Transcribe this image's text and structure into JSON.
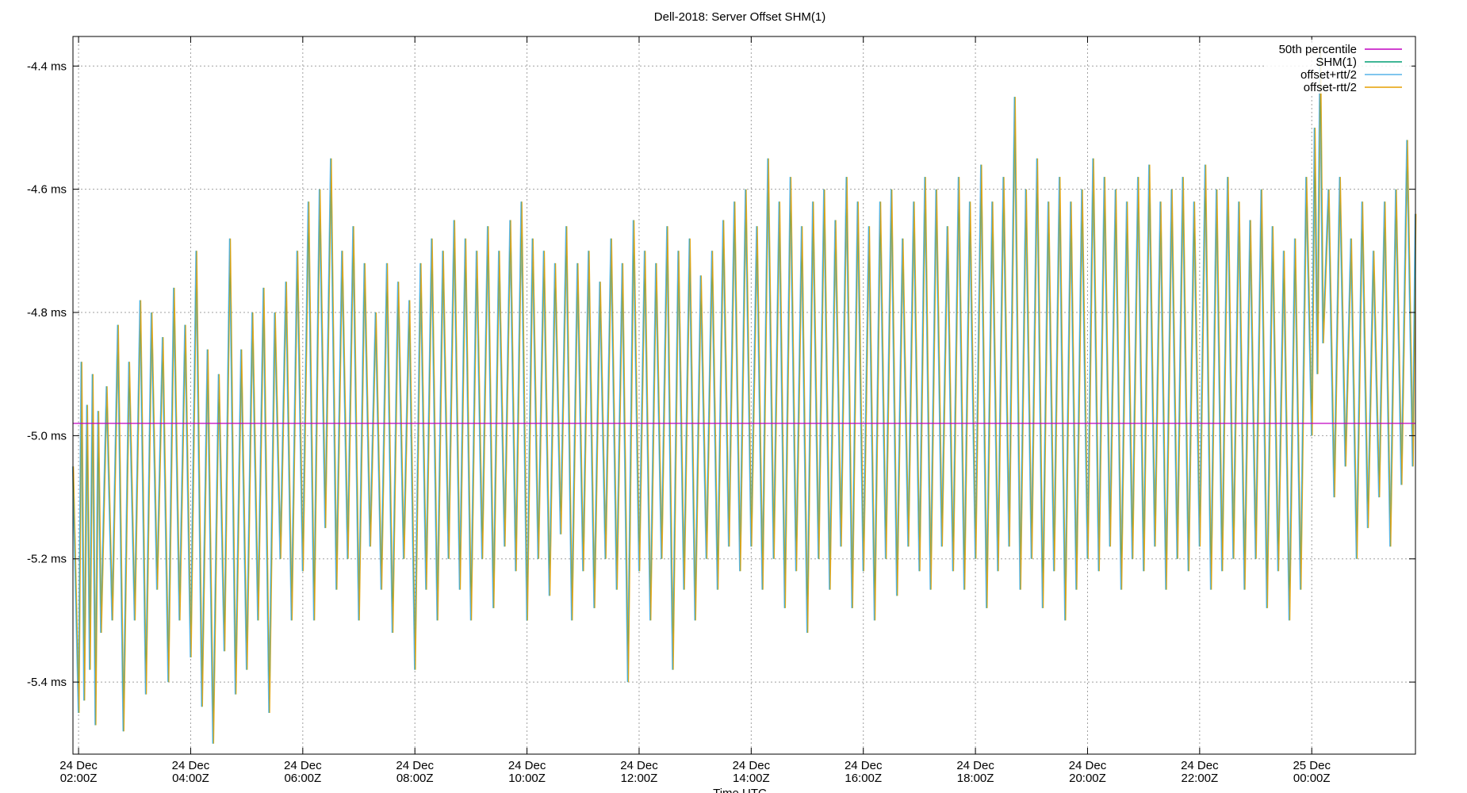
{
  "chart_data": {
    "type": "line",
    "title": "Dell-2018: Server Offset SHM(1)",
    "xlabel": "Time UTC",
    "ylabel": "",
    "x_unit": "hours since 24 Dec 02:00Z",
    "xlim": [
      -0.1,
      23.85
    ],
    "ylim": [
      -5.517,
      -4.352
    ],
    "grid": true,
    "legend_position": "top-right",
    "y_ticks": [
      {
        "value": -4.4,
        "label": "-4.4 ms"
      },
      {
        "value": -4.6,
        "label": "-4.6 ms"
      },
      {
        "value": -4.8,
        "label": "-4.8 ms"
      },
      {
        "value": -5.0,
        "label": "-5.0 ms"
      },
      {
        "value": -5.2,
        "label": "-5.2 ms"
      },
      {
        "value": -5.4,
        "label": "-5.4 ms"
      }
    ],
    "x_ticks": [
      {
        "value": 0,
        "line1": "24 Dec",
        "line2": "02:00Z"
      },
      {
        "value": 2,
        "line1": "24 Dec",
        "line2": "04:00Z"
      },
      {
        "value": 4,
        "line1": "24 Dec",
        "line2": "06:00Z"
      },
      {
        "value": 6,
        "line1": "24 Dec",
        "line2": "08:00Z"
      },
      {
        "value": 8,
        "line1": "24 Dec",
        "line2": "10:00Z"
      },
      {
        "value": 10,
        "line1": "24 Dec",
        "line2": "12:00Z"
      },
      {
        "value": 12,
        "line1": "24 Dec",
        "line2": "14:00Z"
      },
      {
        "value": 14,
        "line1": "24 Dec",
        "line2": "16:00Z"
      },
      {
        "value": 16,
        "line1": "24 Dec",
        "line2": "18:00Z"
      },
      {
        "value": 18,
        "line1": "24 Dec",
        "line2": "20:00Z"
      },
      {
        "value": 20,
        "line1": "24 Dec",
        "line2": "22:00Z"
      },
      {
        "value": 22,
        "line1": "25 Dec",
        "line2": "00:00Z"
      }
    ],
    "series": [
      {
        "name": "50th percentile",
        "color": "#c000c0",
        "kind": "constant",
        "value": -4.98
      },
      {
        "name": "SHM(1)",
        "color": "#009e73",
        "kind": "offset"
      },
      {
        "name": "offset+rtt/2",
        "color": "#56b4e9",
        "kind": "offset"
      },
      {
        "name": "offset-rtt/2",
        "color": "#e69f00",
        "kind": "offset"
      }
    ],
    "offset_samples": [
      [
        -0.1,
        -5.05
      ],
      [
        0.0,
        -5.45
      ],
      [
        0.05,
        -4.88
      ],
      [
        0.1,
        -5.43
      ],
      [
        0.15,
        -4.95
      ],
      [
        0.2,
        -5.38
      ],
      [
        0.25,
        -4.9
      ],
      [
        0.3,
        -5.47
      ],
      [
        0.35,
        -4.96
      ],
      [
        0.4,
        -5.32
      ],
      [
        0.5,
        -4.92
      ],
      [
        0.6,
        -5.3
      ],
      [
        0.7,
        -4.82
      ],
      [
        0.8,
        -5.48
      ],
      [
        0.9,
        -4.88
      ],
      [
        1.0,
        -5.3
      ],
      [
        1.1,
        -4.78
      ],
      [
        1.2,
        -5.42
      ],
      [
        1.3,
        -4.8
      ],
      [
        1.4,
        -5.25
      ],
      [
        1.5,
        -4.84
      ],
      [
        1.6,
        -5.4
      ],
      [
        1.7,
        -4.76
      ],
      [
        1.8,
        -5.3
      ],
      [
        1.9,
        -4.82
      ],
      [
        2.0,
        -5.36
      ],
      [
        2.1,
        -4.7
      ],
      [
        2.2,
        -5.44
      ],
      [
        2.3,
        -4.86
      ],
      [
        2.4,
        -5.5
      ],
      [
        2.5,
        -4.9
      ],
      [
        2.6,
        -5.35
      ],
      [
        2.7,
        -4.68
      ],
      [
        2.8,
        -5.42
      ],
      [
        2.9,
        -4.86
      ],
      [
        3.0,
        -5.38
      ],
      [
        3.1,
        -4.8
      ],
      [
        3.2,
        -5.3
      ],
      [
        3.3,
        -4.76
      ],
      [
        3.4,
        -5.45
      ],
      [
        3.5,
        -4.8
      ],
      [
        3.6,
        -5.2
      ],
      [
        3.7,
        -4.75
      ],
      [
        3.8,
        -5.3
      ],
      [
        3.9,
        -4.7
      ],
      [
        4.0,
        -5.22
      ],
      [
        4.1,
        -4.62
      ],
      [
        4.2,
        -5.3
      ],
      [
        4.3,
        -4.6
      ],
      [
        4.4,
        -5.15
      ],
      [
        4.5,
        -4.55
      ],
      [
        4.6,
        -5.25
      ],
      [
        4.7,
        -4.7
      ],
      [
        4.8,
        -5.2
      ],
      [
        4.9,
        -4.66
      ],
      [
        5.0,
        -5.3
      ],
      [
        5.1,
        -4.72
      ],
      [
        5.2,
        -5.18
      ],
      [
        5.3,
        -4.8
      ],
      [
        5.4,
        -5.25
      ],
      [
        5.5,
        -4.72
      ],
      [
        5.6,
        -5.32
      ],
      [
        5.7,
        -4.75
      ],
      [
        5.8,
        -5.2
      ],
      [
        5.9,
        -4.78
      ],
      [
        6.0,
        -5.38
      ],
      [
        6.1,
        -4.72
      ],
      [
        6.2,
        -5.25
      ],
      [
        6.3,
        -4.68
      ],
      [
        6.4,
        -5.3
      ],
      [
        6.5,
        -4.7
      ],
      [
        6.6,
        -5.2
      ],
      [
        6.7,
        -4.65
      ],
      [
        6.8,
        -5.25
      ],
      [
        6.9,
        -4.68
      ],
      [
        7.0,
        -5.3
      ],
      [
        7.1,
        -4.7
      ],
      [
        7.2,
        -5.2
      ],
      [
        7.3,
        -4.66
      ],
      [
        7.4,
        -5.28
      ],
      [
        7.5,
        -4.7
      ],
      [
        7.6,
        -5.18
      ],
      [
        7.7,
        -4.65
      ],
      [
        7.8,
        -5.22
      ],
      [
        7.9,
        -4.62
      ],
      [
        8.0,
        -5.3
      ],
      [
        8.1,
        -4.68
      ],
      [
        8.2,
        -5.2
      ],
      [
        8.3,
        -4.7
      ],
      [
        8.4,
        -5.26
      ],
      [
        8.5,
        -4.72
      ],
      [
        8.6,
        -5.16
      ],
      [
        8.7,
        -4.66
      ],
      [
        8.8,
        -5.3
      ],
      [
        8.9,
        -4.72
      ],
      [
        9.0,
        -5.22
      ],
      [
        9.1,
        -4.7
      ],
      [
        9.2,
        -5.28
      ],
      [
        9.3,
        -4.75
      ],
      [
        9.4,
        -5.2
      ],
      [
        9.5,
        -4.68
      ],
      [
        9.6,
        -5.25
      ],
      [
        9.7,
        -4.72
      ],
      [
        9.8,
        -5.4
      ],
      [
        9.9,
        -4.65
      ],
      [
        10.0,
        -5.22
      ],
      [
        10.1,
        -4.7
      ],
      [
        10.2,
        -5.3
      ],
      [
        10.3,
        -4.72
      ],
      [
        10.4,
        -5.2
      ],
      [
        10.5,
        -4.66
      ],
      [
        10.6,
        -5.38
      ],
      [
        10.7,
        -4.7
      ],
      [
        10.8,
        -5.25
      ],
      [
        10.9,
        -4.68
      ],
      [
        11.0,
        -5.3
      ],
      [
        11.1,
        -4.74
      ],
      [
        11.2,
        -5.2
      ],
      [
        11.3,
        -4.7
      ],
      [
        11.4,
        -5.25
      ],
      [
        11.5,
        -4.65
      ],
      [
        11.6,
        -5.18
      ],
      [
        11.7,
        -4.62
      ],
      [
        11.8,
        -5.22
      ],
      [
        11.9,
        -4.6
      ],
      [
        12.0,
        -5.18
      ],
      [
        12.1,
        -4.66
      ],
      [
        12.2,
        -5.25
      ],
      [
        12.3,
        -4.55
      ],
      [
        12.4,
        -5.2
      ],
      [
        12.5,
        -4.62
      ],
      [
        12.6,
        -5.28
      ],
      [
        12.7,
        -4.58
      ],
      [
        12.8,
        -5.22
      ],
      [
        12.9,
        -4.66
      ],
      [
        13.0,
        -5.32
      ],
      [
        13.1,
        -4.62
      ],
      [
        13.2,
        -5.2
      ],
      [
        13.3,
        -4.6
      ],
      [
        13.4,
        -5.25
      ],
      [
        13.5,
        -4.65
      ],
      [
        13.6,
        -5.18
      ],
      [
        13.7,
        -4.58
      ],
      [
        13.8,
        -5.28
      ],
      [
        13.9,
        -4.62
      ],
      [
        14.0,
        -5.22
      ],
      [
        14.1,
        -4.66
      ],
      [
        14.2,
        -5.3
      ],
      [
        14.3,
        -4.62
      ],
      [
        14.4,
        -5.2
      ],
      [
        14.5,
        -4.6
      ],
      [
        14.6,
        -5.26
      ],
      [
        14.7,
        -4.68
      ],
      [
        14.8,
        -5.18
      ],
      [
        14.9,
        -4.62
      ],
      [
        15.0,
        -5.22
      ],
      [
        15.1,
        -4.58
      ],
      [
        15.2,
        -5.25
      ],
      [
        15.3,
        -4.6
      ],
      [
        15.4,
        -5.18
      ],
      [
        15.5,
        -4.66
      ],
      [
        15.6,
        -5.22
      ],
      [
        15.7,
        -4.58
      ],
      [
        15.8,
        -5.25
      ],
      [
        15.9,
        -4.62
      ],
      [
        16.0,
        -5.2
      ],
      [
        16.1,
        -4.56
      ],
      [
        16.2,
        -5.28
      ],
      [
        16.3,
        -4.62
      ],
      [
        16.4,
        -5.22
      ],
      [
        16.5,
        -4.58
      ],
      [
        16.6,
        -5.18
      ],
      [
        16.7,
        -4.45
      ],
      [
        16.8,
        -5.25
      ],
      [
        16.9,
        -4.6
      ],
      [
        17.0,
        -5.2
      ],
      [
        17.1,
        -4.55
      ],
      [
        17.2,
        -5.28
      ],
      [
        17.3,
        -4.62
      ],
      [
        17.4,
        -5.22
      ],
      [
        17.5,
        -4.58
      ],
      [
        17.6,
        -5.3
      ],
      [
        17.7,
        -4.62
      ],
      [
        17.8,
        -5.25
      ],
      [
        17.9,
        -4.6
      ],
      [
        18.0,
        -5.2
      ],
      [
        18.1,
        -4.55
      ],
      [
        18.2,
        -5.22
      ],
      [
        18.3,
        -4.58
      ],
      [
        18.4,
        -5.18
      ],
      [
        18.5,
        -4.6
      ],
      [
        18.6,
        -5.25
      ],
      [
        18.7,
        -4.62
      ],
      [
        18.8,
        -5.2
      ],
      [
        18.9,
        -4.58
      ],
      [
        19.0,
        -5.22
      ],
      [
        19.1,
        -4.56
      ],
      [
        19.2,
        -5.18
      ],
      [
        19.3,
        -4.62
      ],
      [
        19.4,
        -5.25
      ],
      [
        19.5,
        -4.6
      ],
      [
        19.6,
        -5.2
      ],
      [
        19.7,
        -4.58
      ],
      [
        19.8,
        -5.22
      ],
      [
        19.9,
        -4.62
      ],
      [
        20.0,
        -5.18
      ],
      [
        20.1,
        -4.56
      ],
      [
        20.2,
        -5.25
      ],
      [
        20.3,
        -4.6
      ],
      [
        20.4,
        -5.22
      ],
      [
        20.5,
        -4.58
      ],
      [
        20.6,
        -5.2
      ],
      [
        20.7,
        -4.62
      ],
      [
        20.8,
        -5.25
      ],
      [
        20.9,
        -4.65
      ],
      [
        21.0,
        -5.2
      ],
      [
        21.1,
        -4.6
      ],
      [
        21.2,
        -5.28
      ],
      [
        21.3,
        -4.66
      ],
      [
        21.4,
        -5.22
      ],
      [
        21.5,
        -4.7
      ],
      [
        21.6,
        -5.3
      ],
      [
        21.7,
        -4.68
      ],
      [
        21.8,
        -5.25
      ],
      [
        21.9,
        -4.58
      ],
      [
        22.0,
        -5.0
      ],
      [
        22.05,
        -4.5
      ],
      [
        22.1,
        -4.9
      ],
      [
        22.15,
        -4.37
      ],
      [
        22.2,
        -4.85
      ],
      [
        22.3,
        -4.6
      ],
      [
        22.4,
        -5.1
      ],
      [
        22.5,
        -4.58
      ],
      [
        22.6,
        -5.05
      ],
      [
        22.7,
        -4.68
      ],
      [
        22.8,
        -5.2
      ],
      [
        22.9,
        -4.62
      ],
      [
        23.0,
        -5.15
      ],
      [
        23.1,
        -4.7
      ],
      [
        23.2,
        -5.1
      ],
      [
        23.3,
        -4.62
      ],
      [
        23.4,
        -5.18
      ],
      [
        23.5,
        -4.6
      ],
      [
        23.6,
        -5.08
      ],
      [
        23.7,
        -4.52
      ],
      [
        23.8,
        -5.05
      ],
      [
        23.85,
        -4.64
      ]
    ]
  }
}
